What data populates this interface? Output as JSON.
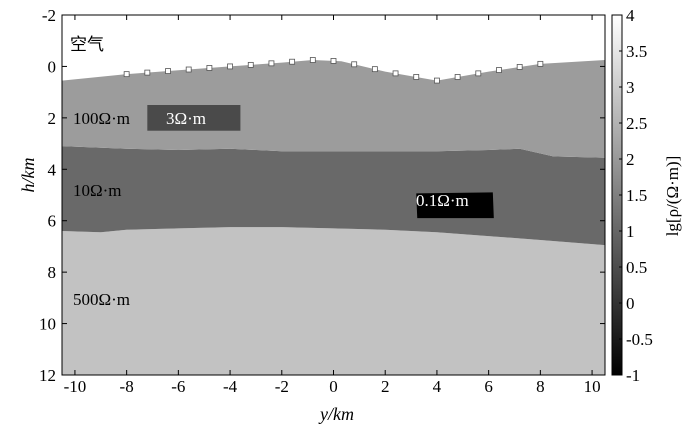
{
  "chart_data": {
    "type": "heatmap",
    "xlabel": "y/km",
    "ylabel": "h/km",
    "xlim": [
      -10.5,
      10.5
    ],
    "ylim": [
      12,
      -2
    ],
    "x_ticks": [
      "-10",
      "-8",
      "-6",
      "-4",
      "-2",
      "0",
      "2",
      "4",
      "6",
      "8",
      "10"
    ],
    "y_ticks": [
      "-2",
      "0",
      "2",
      "4",
      "6",
      "8",
      "10",
      "12"
    ],
    "colorbar": {
      "label": "lg[ρ/(Ω·m)]",
      "range": [
        -1,
        4
      ],
      "ticks": [
        "4",
        "3.5",
        "3",
        "2.5",
        "2",
        "1.5",
        "1",
        "0.5",
        "0",
        "-0.5",
        "-1"
      ],
      "colormap": "gray"
    },
    "layers": [
      {
        "label": "空气",
        "lg_rho": 4.0,
        "color": "#ffffff"
      },
      {
        "label": "100Ω·m",
        "lg_rho": 2.0,
        "color": "#9c9c9c"
      },
      {
        "label": "10Ω·m",
        "lg_rho": 1.0,
        "color": "#696969"
      },
      {
        "label": "500Ω·m",
        "lg_rho": 2.7,
        "color": "#c2c2c2"
      }
    ],
    "anomalies": [
      {
        "label": "3Ω·m",
        "lg_rho": 0.5,
        "color": "#4a4a4a",
        "y_range": [
          -7.2,
          -3.6
        ],
        "h_range": [
          1.5,
          2.5
        ]
      },
      {
        "label": "0.1Ω·m",
        "lg_rho": -1.0,
        "color": "#000000",
        "y_range": [
          3.2,
          6.2
        ],
        "h_range": [
          4.9,
          5.9
        ]
      }
    ],
    "surface_topography": {
      "y": [
        -10.5,
        -8,
        -6,
        -4,
        -2,
        -0.8,
        0.3,
        2,
        4,
        6,
        8,
        10.5
      ],
      "h": [
        0.55,
        0.3,
        0.15,
        0.0,
        -0.15,
        -0.25,
        -0.2,
        0.2,
        0.55,
        0.2,
        -0.1,
        -0.25
      ]
    },
    "interface_100_10": {
      "y": [
        -10.5,
        -8,
        -6,
        -4,
        -2,
        0,
        2,
        4,
        6,
        7.2,
        8.5,
        10.5
      ],
      "h": [
        3.1,
        3.2,
        3.25,
        3.2,
        3.3,
        3.3,
        3.3,
        3.3,
        3.25,
        3.2,
        3.5,
        3.55
      ]
    },
    "interface_10_500": {
      "y": [
        -10.5,
        -9,
        -8,
        -6,
        -4,
        -2,
        0,
        2,
        4,
        6,
        8,
        10.5
      ],
      "h": [
        6.4,
        6.45,
        6.35,
        6.3,
        6.25,
        6.25,
        6.3,
        6.35,
        6.45,
        6.6,
        6.75,
        6.95
      ]
    },
    "stations_y": [
      -8,
      -7.2,
      -6.4,
      -5.6,
      -4.8,
      -4.0,
      -3.2,
      -2.4,
      -1.6,
      -0.8,
      0.0,
      0.8,
      1.6,
      2.4,
      3.2,
      4.0,
      4.8,
      5.6,
      6.4,
      7.2,
      8.0
    ]
  }
}
